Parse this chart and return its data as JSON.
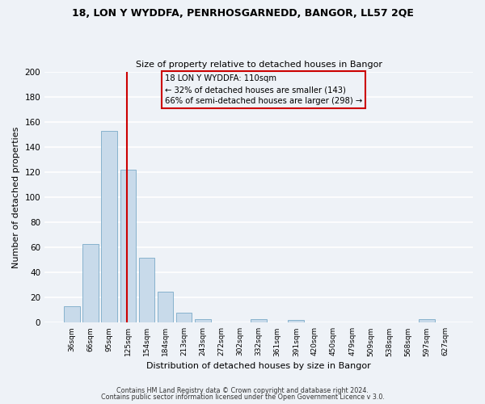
{
  "title1": "18, LON Y WYDDFA, PENRHOSGARNEDD, BANGOR, LL57 2QE",
  "title2": "Size of property relative to detached houses in Bangor",
  "xlabel": "Distribution of detached houses by size in Bangor",
  "ylabel": "Number of detached properties",
  "bar_color": "#c8daea",
  "bar_edge_color": "#7aaac8",
  "bg_color": "#eef2f7",
  "grid_color": "#ffffff",
  "annotation_box_color": "#cc0000",
  "vline_color": "#cc0000",
  "annotation_title": "18 LON Y WYDDFA: 110sqm",
  "annotation_line1": "← 32% of detached houses are smaller (143)",
  "annotation_line2": "66% of semi-detached houses are larger (298) →",
  "footnote1": "Contains HM Land Registry data © Crown copyright and database right 2024.",
  "footnote2": "Contains public sector information licensed under the Open Government Licence v 3.0.",
  "categories": [
    "36sqm",
    "66sqm",
    "95sqm",
    "125sqm",
    "154sqm",
    "184sqm",
    "213sqm",
    "243sqm",
    "272sqm",
    "302sqm",
    "332sqm",
    "361sqm",
    "391sqm",
    "420sqm",
    "450sqm",
    "479sqm",
    "509sqm",
    "538sqm",
    "568sqm",
    "597sqm",
    "627sqm"
  ],
  "values": [
    13,
    63,
    153,
    122,
    52,
    25,
    8,
    3,
    0,
    0,
    3,
    0,
    2,
    0,
    0,
    0,
    0,
    0,
    0,
    3,
    0
  ],
  "ylim": [
    0,
    200
  ],
  "yticks": [
    0,
    20,
    40,
    60,
    80,
    100,
    120,
    140,
    160,
    180,
    200
  ],
  "vline_position": 2.93
}
